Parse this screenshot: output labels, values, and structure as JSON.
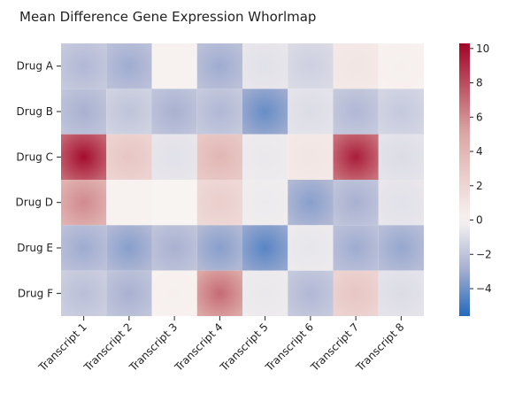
{
  "chart_data": {
    "type": "heatmap",
    "title": "Mean Difference Gene Expression Whorlmap",
    "xlabel": "",
    "ylabel": "",
    "rows": [
      "Drug A",
      "Drug B",
      "Drug C",
      "Drug D",
      "Drug E",
      "Drug F"
    ],
    "columns": [
      "Transcript 1",
      "Transcript 2",
      "Transcript 3",
      "Transcript 4",
      "Transcript 5",
      "Transcript 6",
      "Transcript 7",
      "Transcript 8"
    ],
    "values": [
      [
        -2.5,
        -3.0,
        0.2,
        -3.0,
        -0.8,
        -1.5,
        1.0,
        0.3
      ],
      [
        -2.8,
        -2.0,
        -2.8,
        -2.5,
        -4.2,
        -1.0,
        -2.5,
        -1.8
      ],
      [
        10.0,
        3.0,
        -0.8,
        4.0,
        -0.5,
        1.0,
        9.5,
        -1.0
      ],
      [
        6.0,
        0.2,
        0.0,
        2.5,
        -0.4,
        -3.5,
        -2.8,
        -0.8
      ],
      [
        -3.0,
        -3.5,
        -2.8,
        -3.5,
        -4.5,
        -0.6,
        -3.0,
        -3.2
      ],
      [
        -2.2,
        -2.8,
        0.3,
        7.0,
        -0.5,
        -2.5,
        3.0,
        -1.0
      ]
    ],
    "colorbar": {
      "min": -5.6,
      "max": 10.3,
      "ticks": [
        -4,
        -2,
        0,
        2,
        4,
        6,
        8,
        10
      ],
      "tick_labels": [
        "−4",
        "−2",
        "0",
        "2",
        "4",
        "6",
        "8",
        "10"
      ]
    },
    "colormap": "vlag",
    "colormap_stops": [
      "#2369bd",
      "#a9b1d1",
      "#f8f4f2",
      "#dba5a3",
      "#a10427"
    ]
  }
}
